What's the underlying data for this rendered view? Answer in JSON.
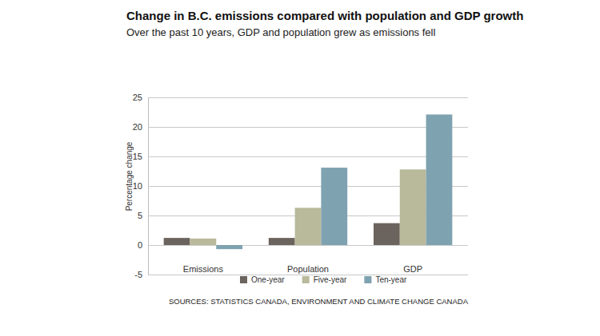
{
  "chart_data": {
    "type": "bar",
    "title": "Change in B.C. emissions compared with population and GDP growth",
    "subtitle": "Over the past 10 years, GDP and population grew as emissions fell",
    "y_label": "Percentage change",
    "source": "SOURCES: STATISTICS CANADA, ENVIRONMENT AND CLIMATE CHANGE CANADA",
    "categories": [
      "Emissions",
      "Population",
      "GDP"
    ],
    "series": [
      {
        "name": "One-year",
        "color": "#6b635d",
        "values": [
          1.2,
          1.2,
          3.7
        ]
      },
      {
        "name": "Five-year",
        "color": "#b9b99b",
        "values": [
          1.1,
          6.3,
          12.8
        ]
      },
      {
        "name": "Ten-year",
        "color": "#7fa2b0",
        "values": [
          -0.7,
          13.1,
          22.1
        ]
      }
    ],
    "ylim": [
      -5,
      25
    ],
    "yticks": [
      -5,
      0,
      5,
      10,
      15,
      20,
      25
    ],
    "grid": true,
    "legend": "bottom",
    "data_labels": false
  }
}
